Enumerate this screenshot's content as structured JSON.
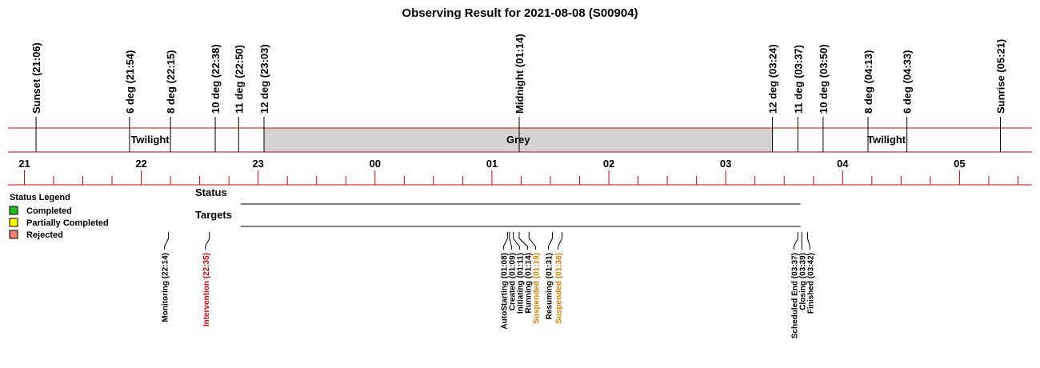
{
  "chart_data": {
    "type": "timeline",
    "title": "Observing Result for 2021-08-08 (S00904)",
    "xlim": [
      20.86,
      29.62
    ],
    "xticks": [
      21,
      22,
      23,
      {
        "value": 24,
        "label": "00"
      },
      {
        "value": 25,
        "label": "01"
      },
      {
        "value": 26,
        "label": "02"
      },
      {
        "value": 27,
        "label": "03"
      },
      {
        "value": 28,
        "label": "04"
      },
      {
        "value": 29,
        "label": "05"
      }
    ],
    "minor_xticks": [
      21.25,
      21.5,
      21.75,
      22.25,
      22.5,
      22.75,
      23.25,
      23.5,
      23.75,
      24.25,
      24.5,
      24.75,
      25.25,
      25.5,
      25.75,
      26.25,
      26.5,
      26.75,
      27.25,
      27.5,
      27.75,
      28.25,
      28.5,
      28.75,
      29.25,
      29.5
    ],
    "markers": [
      {
        "label": "Sunset (21:06)",
        "x": 21.1
      },
      {
        "label": "6 deg (21:54)",
        "x": 21.9
      },
      {
        "label": "8 deg (22:15)",
        "x": 22.25
      },
      {
        "label": "10 deg (22:38)",
        "x": 22.633
      },
      {
        "label": "11 deg (22:50)",
        "x": 22.833
      },
      {
        "label": "12 deg (23:03)",
        "x": 23.05
      },
      {
        "label": "Midnight (01:14)",
        "x": 25.233
      },
      {
        "label": "12 deg (03:24)",
        "x": 27.4
      },
      {
        "label": "11 deg (03:37)",
        "x": 27.617
      },
      {
        "label": "10 deg (03:50)",
        "x": 27.833
      },
      {
        "label": "8 deg (04:13)",
        "x": 28.217
      },
      {
        "label": "6 deg (04:33)",
        "x": 28.55
      },
      {
        "label": "Sunrise (05:21)",
        "x": 29.35
      }
    ],
    "bands": [
      {
        "label": "Twilight",
        "start": 21.1,
        "end": 23.05,
        "color": "#ffffff"
      },
      {
        "label": "Grey",
        "start": 23.05,
        "end": 27.4,
        "color": "#d3d3d3"
      },
      {
        "label": "Twilight",
        "start": 27.4,
        "end": 29.35,
        "color": "#ffffff"
      }
    ],
    "rows": [
      {
        "label": "Status",
        "start": 22.85,
        "end": 27.64
      },
      {
        "label": "Targets",
        "start": 22.85,
        "end": 27.64
      }
    ],
    "legend_title": "Status Legend",
    "legend": [
      {
        "label": "Completed",
        "color": "#22bb22"
      },
      {
        "label": "Partially Completed",
        "color": "#ffff00"
      },
      {
        "label": "Rejected",
        "color": "#f08070"
      }
    ],
    "events": [
      {
        "label": "Monitoring (22:14)",
        "x": 22.233,
        "color": "#000000"
      },
      {
        "label": "Intervention (22:35)",
        "x": 22.583,
        "color": "#e00000"
      },
      {
        "label": "AutoStarting (01:08)",
        "x": 25.133,
        "color": "#000000"
      },
      {
        "label": "Created (01:09)",
        "x": 25.15,
        "color": "#000000"
      },
      {
        "label": "Initiating (01:11)",
        "x": 25.183,
        "color": "#000000"
      },
      {
        "label": "Running (01:14)",
        "x": 25.233,
        "color": "#000000"
      },
      {
        "label": "Suspended (01:19)",
        "x": 25.317,
        "color": "#e08000"
      },
      {
        "label": "Resuming (01:31)",
        "x": 25.517,
        "color": "#000000"
      },
      {
        "label": "Suspended (01:36)",
        "x": 25.6,
        "color": "#e08000"
      },
      {
        "label": "Scheduled End (03:37)",
        "x": 27.617,
        "color": "#000000"
      },
      {
        "label": "Closing (03:39)",
        "x": 27.65,
        "color": "#000000"
      },
      {
        "label": "Finished (03:42)",
        "x": 27.7,
        "color": "#000000"
      }
    ]
  }
}
